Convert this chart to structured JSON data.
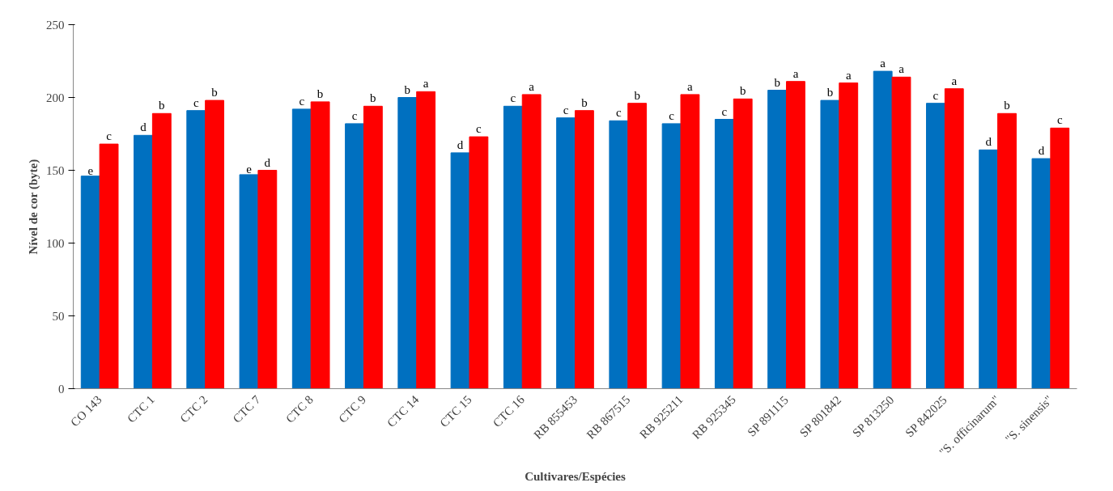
{
  "chart_data": {
    "type": "bar",
    "xlabel": "Cultivares/Espécies",
    "ylabel": "Nível de cor (byte)",
    "categories": [
      "CO 143",
      "CTC 1",
      "CTC 2",
      "CTC 7",
      "CTC 8",
      "CTC 9",
      "CTC 14",
      "CTC 15",
      "CTC 16",
      "RB 855453",
      "RB 867515",
      "RB 925211",
      "RB 925345",
      "SP 891115",
      "SP 801842",
      "SP 813250",
      "SP 842025",
      "\"S. officinarum\"",
      "\"S. sinensis\""
    ],
    "series": [
      {
        "color": "#0070c0",
        "values": [
          146,
          174,
          191,
          147,
          192,
          182,
          200,
          162,
          194,
          186,
          184,
          182,
          185,
          205,
          198,
          218,
          196,
          164,
          158
        ],
        "value_labels": [
          "e",
          "d",
          "c",
          "e",
          "c",
          "c",
          "b",
          "d",
          "c",
          "c",
          "c",
          "c",
          "c",
          "b",
          "b",
          "a",
          "c",
          "d",
          "d"
        ]
      },
      {
        "color": "#ff0000",
        "values": [
          168,
          189,
          198,
          150,
          197,
          194,
          204,
          173,
          202,
          191,
          196,
          202,
          199,
          211,
          210,
          214,
          206,
          189,
          179
        ],
        "value_labels": [
          "c",
          "b",
          "b",
          "d",
          "b",
          "b",
          "a",
          "c",
          "a",
          "b",
          "b",
          "a",
          "b",
          "a",
          "a",
          "a",
          "a",
          "b",
          "c"
        ]
      }
    ],
    "ylim": [
      0,
      250
    ],
    "yticks": [
      0,
      50,
      100,
      150,
      200,
      250
    ],
    "grid": false
  }
}
